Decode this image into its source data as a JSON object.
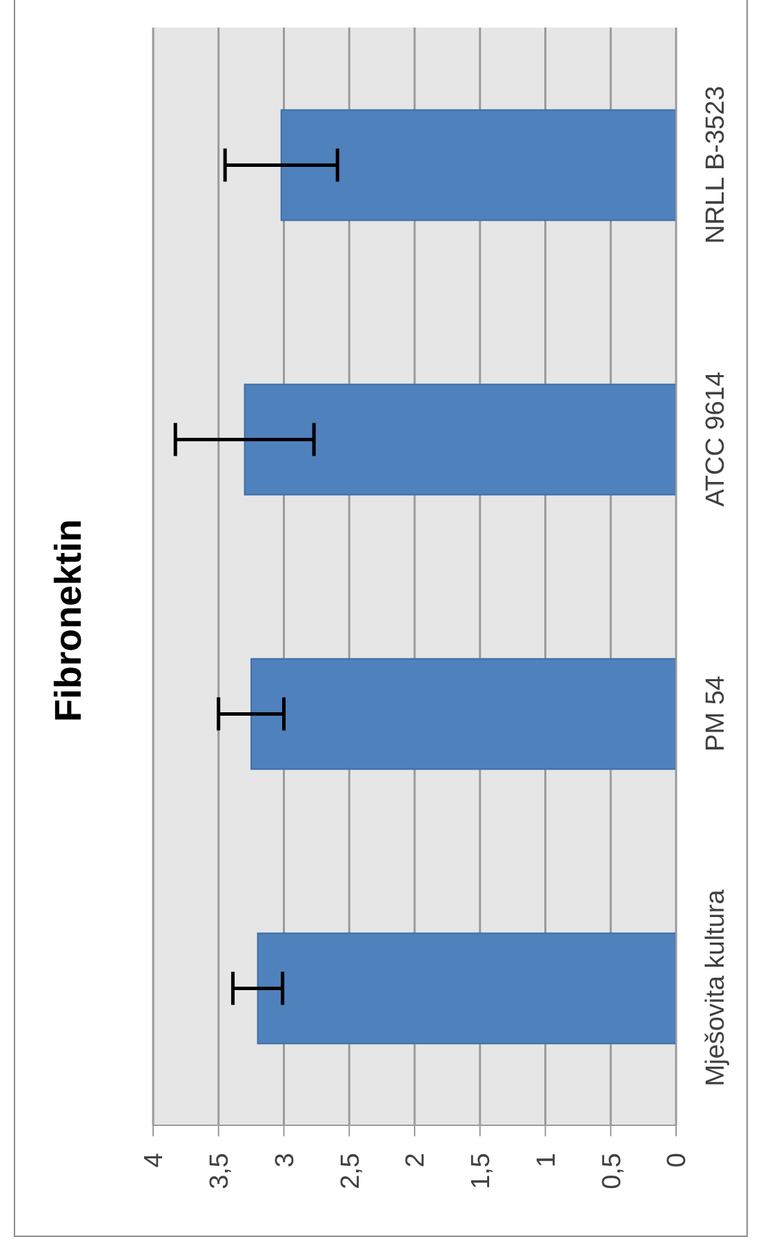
{
  "chart_data": {
    "type": "bar",
    "title": "Fibronektin",
    "orientation": "horizontal",
    "categories": [
      "NRLL B-3523",
      "ATCC 9614",
      "PM 54",
      "Mješovita kultura"
    ],
    "values": [
      3.02,
      3.3,
      3.25,
      3.2
    ],
    "errors": [
      0.43,
      0.53,
      0.25,
      0.19
    ],
    "color": "#4f81bd",
    "xlim": [
      4,
      0
    ],
    "xticks": [
      4,
      {
        "value": 3.5,
        "label": "3,5"
      },
      3,
      {
        "value": 2.5,
        "label": "2,5"
      },
      2,
      {
        "value": 1.5,
        "label": "1,5"
      },
      1,
      {
        "value": 0.5,
        "label": "0,5"
      },
      0
    ],
    "grid": "x",
    "legend": false
  }
}
